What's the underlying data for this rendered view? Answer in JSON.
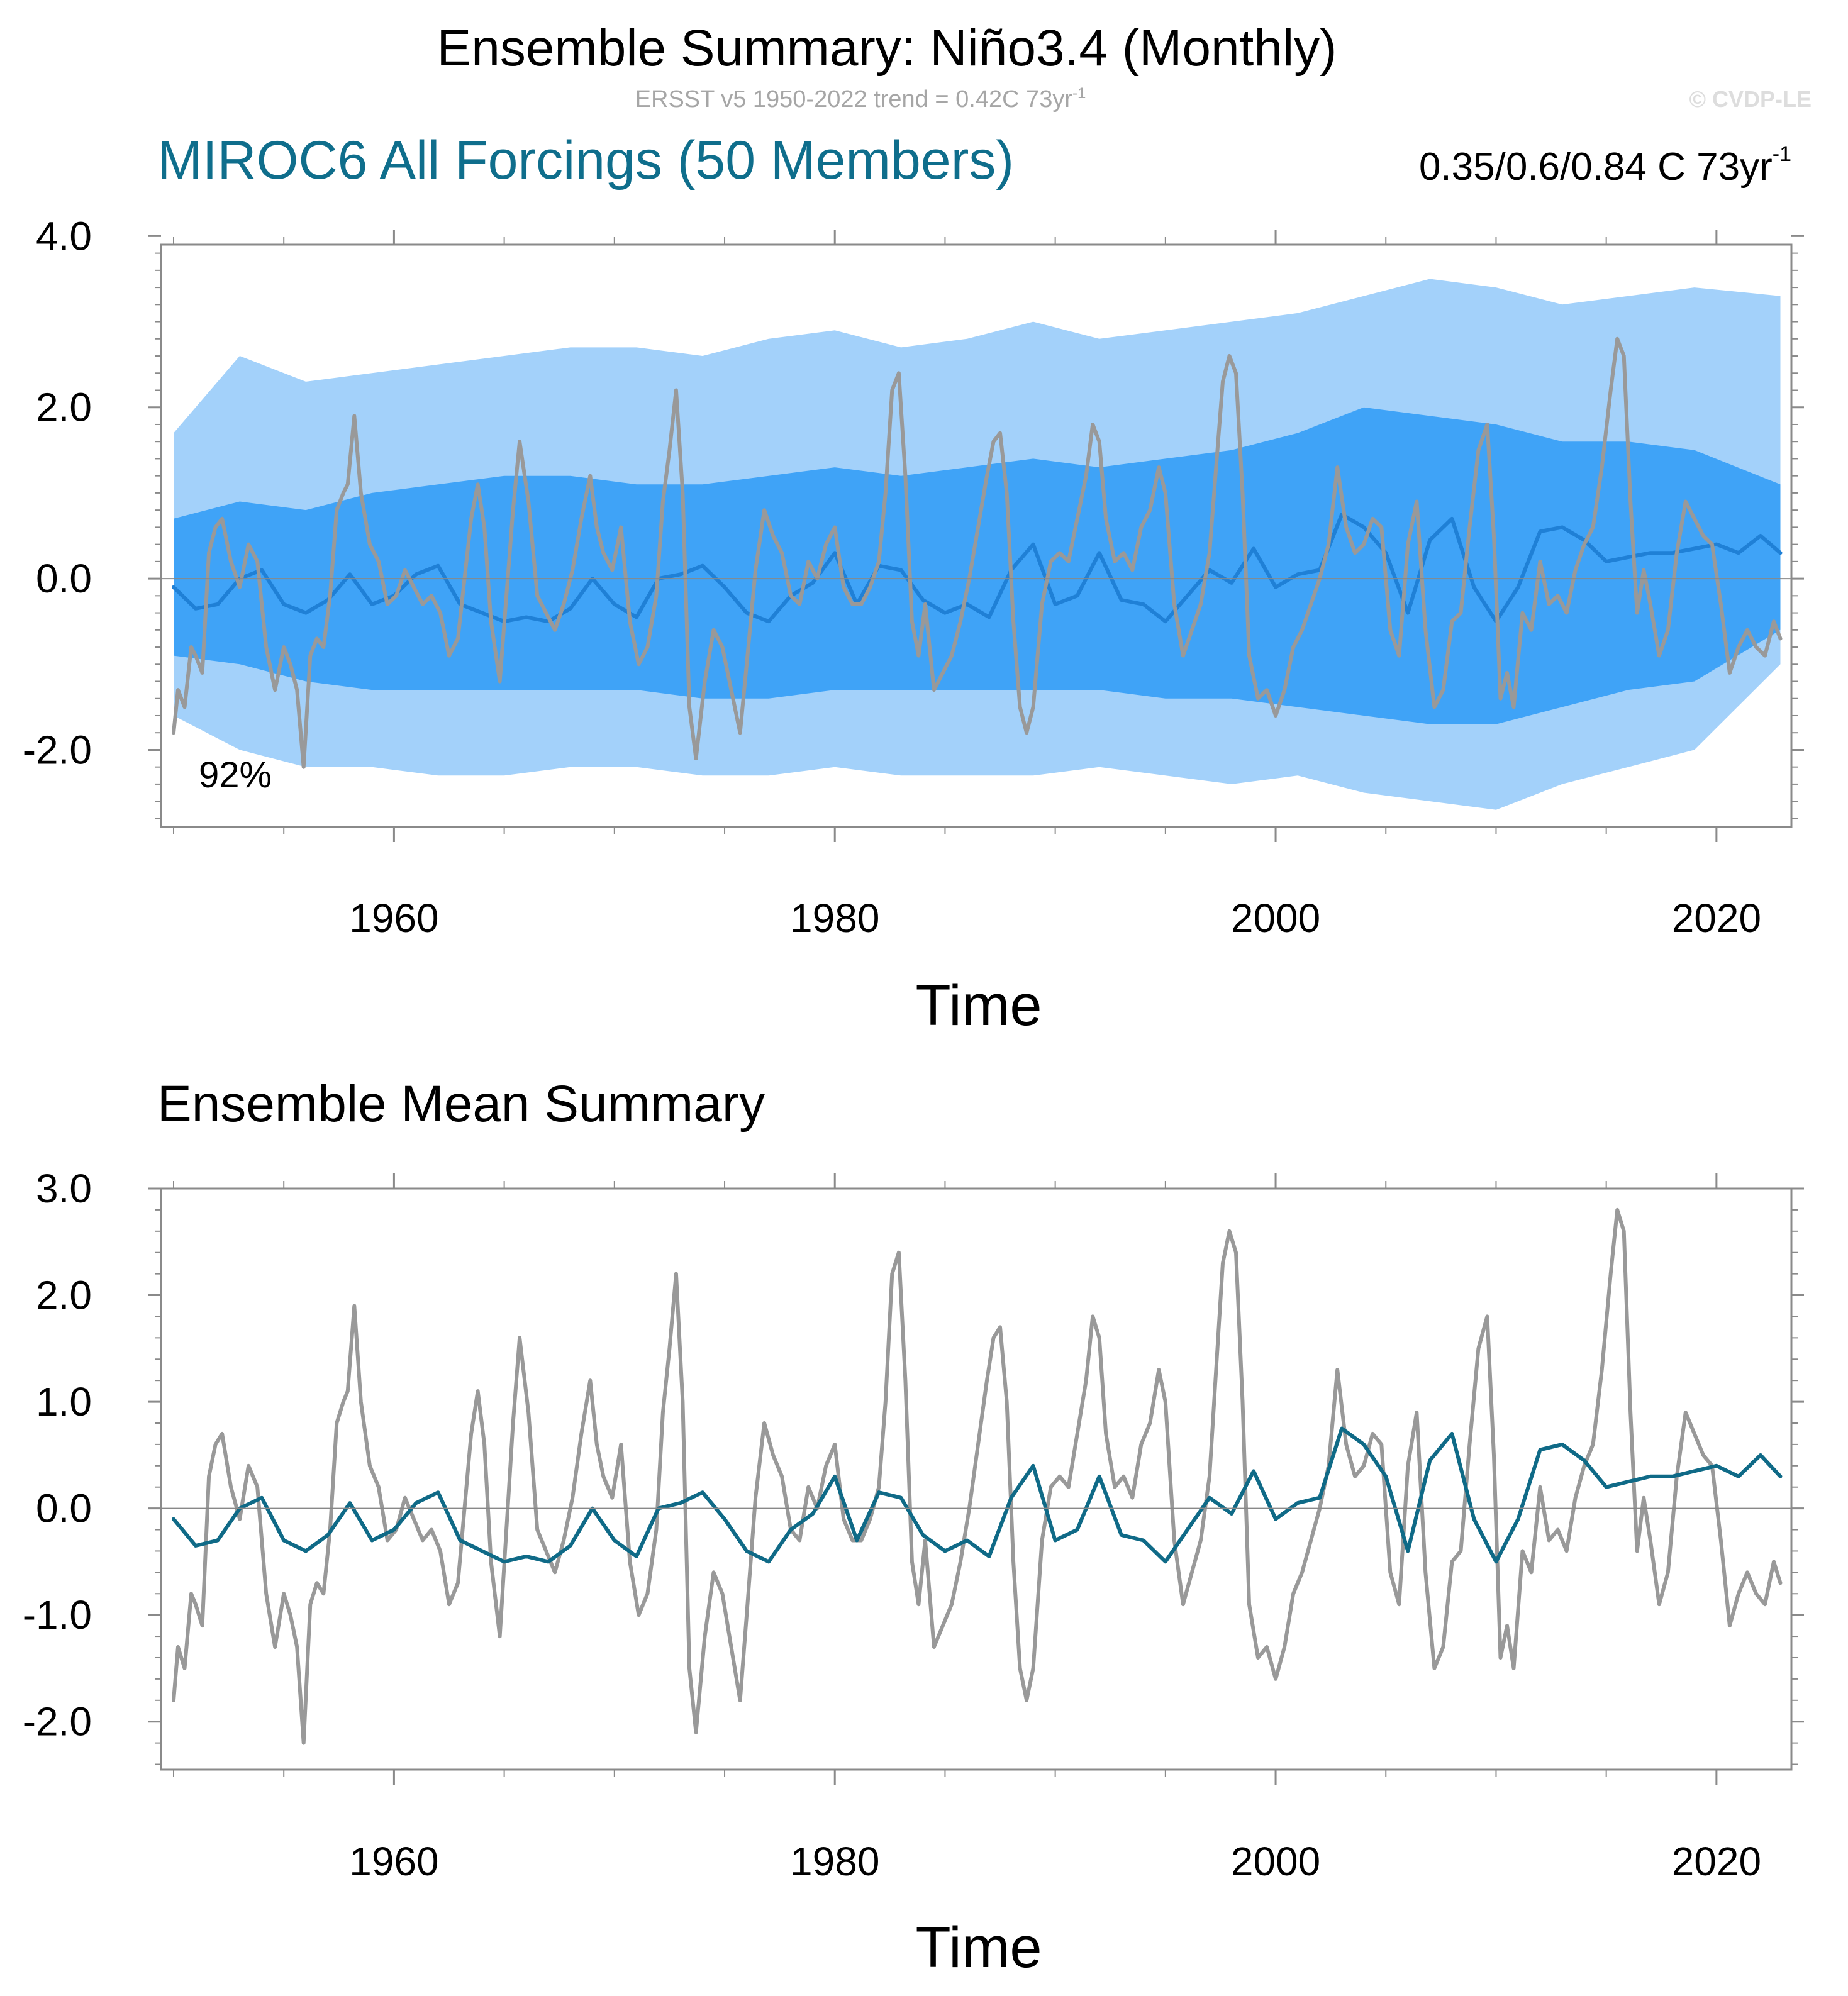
{
  "header": {
    "title": "Ensemble Summary: Niño3.4 (Monthly)",
    "subtitle": "ERSST v5 1950-2022 trend = 0.42C 73yr",
    "subtitle_sup": "-1",
    "copyright": "© CVDP-LE"
  },
  "top_panel": {
    "model_label": "MIROC6 All Forcings (50 Members)",
    "trend_range": "0.35/0.6/0.84 C 73yr",
    "trend_range_sup": "-1",
    "percent_label": "92%",
    "xlabel": "Time"
  },
  "bottom_panel": {
    "title": "Ensemble Mean Summary",
    "xlabel": "Time"
  },
  "colors": {
    "band_outer": "#a3d1fa",
    "band_inner": "#3fa3f7",
    "ens_mean_top": "#1f80d6",
    "ens_mean_bottom": "#0f6a87",
    "observed": "#999999"
  },
  "chart_data": [
    {
      "type": "area",
      "panel": "top",
      "x_range": [
        1950.0,
        2023.0
      ],
      "ylim": [
        -2.9,
        4.0
      ],
      "yticks": [
        "4.0",
        "2.0",
        "0.0",
        "-2.0"
      ],
      "ytick_values": [
        4.0,
        2.0,
        0.0,
        -2.0
      ],
      "xticks": [
        "1960",
        "1980",
        "2000",
        "2020"
      ],
      "xtick_values": [
        1960,
        1980,
        2000,
        2020
      ],
      "series": [
        {
          "name": "Ensemble spread (min-max)",
          "style": "band_outer",
          "x": [
            1950,
            1953,
            1956,
            1959,
            1962,
            1965,
            1968,
            1971,
            1974,
            1977,
            1980,
            1983,
            1986,
            1989,
            1992,
            1995,
            1998,
            2001,
            2004,
            2007,
            2010,
            2013,
            2016,
            2019,
            2022.9
          ],
          "upper": [
            1.7,
            2.6,
            2.3,
            2.4,
            2.5,
            2.6,
            2.7,
            2.7,
            2.6,
            2.8,
            2.9,
            2.7,
            2.8,
            3.0,
            2.8,
            2.9,
            3.0,
            3.1,
            3.3,
            3.5,
            3.4,
            3.2,
            3.3,
            3.4,
            3.3
          ],
          "lower": [
            -1.6,
            -2.0,
            -2.2,
            -2.2,
            -2.3,
            -2.3,
            -2.2,
            -2.2,
            -2.3,
            -2.3,
            -2.2,
            -2.3,
            -2.3,
            -2.3,
            -2.2,
            -2.3,
            -2.4,
            -2.3,
            -2.5,
            -2.6,
            -2.7,
            -2.4,
            -2.2,
            -2.0,
            -1.0
          ]
        },
        {
          "name": "Ensemble spread (10th-90th pct)",
          "style": "band_inner",
          "x": [
            1950,
            1953,
            1956,
            1959,
            1962,
            1965,
            1968,
            1971,
            1974,
            1977,
            1980,
            1983,
            1986,
            1989,
            1992,
            1995,
            1998,
            2001,
            2004,
            2007,
            2010,
            2013,
            2016,
            2019,
            2022.9
          ],
          "upper": [
            0.7,
            0.9,
            0.8,
            1.0,
            1.1,
            1.2,
            1.2,
            1.1,
            1.1,
            1.2,
            1.3,
            1.2,
            1.3,
            1.4,
            1.3,
            1.4,
            1.5,
            1.7,
            2.0,
            1.9,
            1.8,
            1.6,
            1.6,
            1.5,
            1.1
          ],
          "lower": [
            -0.9,
            -1.0,
            -1.2,
            -1.3,
            -1.3,
            -1.3,
            -1.3,
            -1.3,
            -1.4,
            -1.4,
            -1.3,
            -1.3,
            -1.3,
            -1.3,
            -1.3,
            -1.4,
            -1.4,
            -1.5,
            -1.6,
            -1.7,
            -1.7,
            -1.5,
            -1.3,
            -1.2,
            -0.6
          ]
        },
        {
          "name": "Ensemble mean",
          "style": "ens_mean",
          "ref": "ensemble_mean"
        },
        {
          "name": "ERSST v5 observed",
          "style": "observed",
          "ref": "observed"
        }
      ]
    },
    {
      "type": "line",
      "panel": "bottom",
      "x_range": [
        1950.0,
        2023.0
      ],
      "ylim": [
        -2.45,
        3.0
      ],
      "yticks": [
        "3.0",
        "2.0",
        "1.0",
        "0.0",
        "-1.0",
        "-2.0"
      ],
      "ytick_values": [
        3.0,
        2.0,
        1.0,
        0.0,
        -1.0,
        -2.0
      ],
      "xticks": [
        "1960",
        "1980",
        "2000",
        "2020"
      ],
      "xtick_values": [
        1960,
        1980,
        2000,
        2020
      ],
      "series": [
        {
          "name": "ERSST v5 observed",
          "style": "observed",
          "ref": "observed"
        },
        {
          "name": "Ensemble mean",
          "style": "ens_mean",
          "ref": "ensemble_mean"
        }
      ]
    }
  ],
  "series_values": {
    "observed": {
      "x": [
        1950.0,
        1950.2,
        1950.5,
        1950.8,
        1951.0,
        1951.3,
        1951.6,
        1951.9,
        1952.2,
        1952.6,
        1953.0,
        1953.4,
        1953.8,
        1954.2,
        1954.6,
        1955.0,
        1955.3,
        1955.6,
        1955.9,
        1956.2,
        1956.5,
        1956.8,
        1957.1,
        1957.4,
        1957.7,
        1957.9,
        1958.2,
        1958.5,
        1958.9,
        1959.3,
        1959.7,
        1960.1,
        1960.5,
        1960.9,
        1961.3,
        1961.7,
        1962.1,
        1962.5,
        1962.9,
        1963.2,
        1963.5,
        1963.8,
        1964.1,
        1964.4,
        1964.8,
        1965.1,
        1965.4,
        1965.7,
        1966.1,
        1966.5,
        1966.9,
        1967.3,
        1967.7,
        1968.1,
        1968.5,
        1968.9,
        1969.2,
        1969.5,
        1969.9,
        1970.3,
        1970.7,
        1971.1,
        1971.5,
        1971.9,
        1972.2,
        1972.5,
        1972.8,
        1973.1,
        1973.4,
        1973.7,
        1974.1,
        1974.5,
        1974.9,
        1975.3,
        1975.7,
        1976.0,
        1976.4,
        1976.8,
        1977.2,
        1977.6,
        1978.0,
        1978.4,
        1978.8,
        1979.2,
        1979.6,
        1980.0,
        1980.4,
        1980.8,
        1981.2,
        1981.6,
        1982.0,
        1982.3,
        1982.6,
        1982.9,
        1983.2,
        1983.5,
        1983.8,
        1984.1,
        1984.5,
        1984.9,
        1985.3,
        1985.7,
        1986.1,
        1986.5,
        1986.9,
        1987.2,
        1987.5,
        1987.8,
        1988.1,
        1988.4,
        1988.7,
        1989.0,
        1989.4,
        1989.8,
        1990.2,
        1990.6,
        1991.0,
        1991.4,
        1991.7,
        1992.0,
        1992.3,
        1992.7,
        1993.1,
        1993.5,
        1993.9,
        1994.3,
        1994.7,
        1995.0,
        1995.4,
        1995.8,
        1996.2,
        1996.6,
        1997.0,
        1997.3,
        1997.6,
        1997.9,
        1998.2,
        1998.5,
        1998.8,
        1999.2,
        1999.6,
        2000.0,
        2000.4,
        2000.8,
        2001.2,
        2001.6,
        2002.0,
        2002.4,
        2002.8,
        2003.2,
        2003.6,
        2004.0,
        2004.4,
        2004.8,
        2005.2,
        2005.6,
        2006.0,
        2006.4,
        2006.8,
        2007.2,
        2007.6,
        2008.0,
        2008.4,
        2008.8,
        2009.2,
        2009.6,
        2009.9,
        2010.2,
        2010.5,
        2010.8,
        2011.2,
        2011.6,
        2012.0,
        2012.4,
        2012.8,
        2013.2,
        2013.6,
        2014.0,
        2014.4,
        2014.8,
        2015.2,
        2015.5,
        2015.8,
        2016.1,
        2016.4,
        2016.7,
        2017.0,
        2017.4,
        2017.8,
        2018.2,
        2018.6,
        2019.0,
        2019.4,
        2019.8,
        2020.2,
        2020.6,
        2021.0,
        2021.4,
        2021.8,
        2022.2,
        2022.6,
        2022.9
      ],
      "y": [
        -1.8,
        -1.3,
        -1.5,
        -0.8,
        -0.9,
        -1.1,
        0.3,
        0.6,
        0.7,
        0.2,
        -0.1,
        0.4,
        0.2,
        -0.8,
        -1.3,
        -0.8,
        -1.0,
        -1.3,
        -2.2,
        -0.9,
        -0.7,
        -0.8,
        -0.2,
        0.8,
        1.0,
        1.1,
        1.9,
        1.0,
        0.4,
        0.2,
        -0.3,
        -0.2,
        0.1,
        -0.1,
        -0.3,
        -0.2,
        -0.4,
        -0.9,
        -0.7,
        0.0,
        0.7,
        1.1,
        0.6,
        -0.5,
        -1.2,
        -0.2,
        0.8,
        1.6,
        0.9,
        -0.2,
        -0.4,
        -0.6,
        -0.3,
        0.1,
        0.7,
        1.2,
        0.6,
        0.3,
        0.1,
        0.6,
        -0.5,
        -1.0,
        -0.8,
        -0.2,
        0.9,
        1.5,
        2.2,
        1.0,
        -1.5,
        -2.1,
        -1.2,
        -0.6,
        -0.8,
        -1.3,
        -1.8,
        -1.0,
        0.1,
        0.8,
        0.5,
        0.3,
        -0.2,
        -0.3,
        0.2,
        0.0,
        0.4,
        0.6,
        -0.1,
        -0.3,
        -0.3,
        -0.1,
        0.2,
        1.0,
        2.2,
        2.4,
        1.2,
        -0.5,
        -0.9,
        -0.3,
        -1.3,
        -1.1,
        -0.9,
        -0.5,
        0.0,
        0.6,
        1.2,
        1.6,
        1.7,
        1.0,
        -0.5,
        -1.5,
        -1.8,
        -1.5,
        -0.3,
        0.2,
        0.3,
        0.2,
        0.7,
        1.2,
        1.8,
        1.6,
        0.7,
        0.2,
        0.3,
        0.1,
        0.6,
        0.8,
        1.3,
        1.0,
        -0.3,
        -0.9,
        -0.6,
        -0.3,
        0.3,
        1.3,
        2.3,
        2.6,
        2.4,
        1.0,
        -0.9,
        -1.4,
        -1.3,
        -1.6,
        -1.3,
        -0.8,
        -0.6,
        -0.3,
        0.0,
        0.4,
        1.3,
        0.6,
        0.3,
        0.4,
        0.7,
        0.6,
        -0.6,
        -0.9,
        0.4,
        0.9,
        -0.6,
        -1.5,
        -1.3,
        -0.5,
        -0.4,
        0.6,
        1.5,
        1.8,
        0.5,
        -1.4,
        -1.1,
        -1.5,
        -0.4,
        -0.6,
        0.2,
        -0.3,
        -0.2,
        -0.4,
        0.1,
        0.4,
        0.6,
        1.3,
        2.2,
        2.8,
        2.6,
        0.9,
        -0.4,
        0.1,
        -0.3,
        -0.9,
        -0.6,
        0.3,
        0.9,
        0.7,
        0.5,
        0.4,
        -0.3,
        -1.1,
        -0.8,
        -0.6,
        -0.8,
        -0.9,
        -0.5,
        -0.7
      ],
      "note": "observed ERSST v5 Niño3.4 anomaly (°C), approximated from the plot"
    },
    "ensemble_mean": {
      "x": [
        1950.0,
        1951.0,
        1952.0,
        1953.0,
        1954.0,
        1955.0,
        1956.0,
        1957.0,
        1958.0,
        1959.0,
        1960.0,
        1961.0,
        1962.0,
        1963.0,
        1964.0,
        1965.0,
        1966.0,
        1967.0,
        1968.0,
        1969.0,
        1970.0,
        1971.0,
        1972.0,
        1973.0,
        1974.0,
        1975.0,
        1976.0,
        1977.0,
        1978.0,
        1979.0,
        1980.0,
        1981.0,
        1982.0,
        1983.0,
        1984.0,
        1985.0,
        1986.0,
        1987.0,
        1988.0,
        1989.0,
        1990.0,
        1991.0,
        1992.0,
        1993.0,
        1994.0,
        1995.0,
        1996.0,
        1997.0,
        1998.0,
        1999.0,
        2000.0,
        2001.0,
        2002.0,
        2003.0,
        2004.0,
        2005.0,
        2006.0,
        2007.0,
        2008.0,
        2009.0,
        2010.0,
        2011.0,
        2012.0,
        2013.0,
        2014.0,
        2015.0,
        2016.0,
        2017.0,
        2018.0,
        2019.0,
        2020.0,
        2021.0,
        2022.0,
        2022.9
      ],
      "y": [
        -0.1,
        -0.35,
        -0.3,
        0.0,
        0.1,
        -0.3,
        -0.4,
        -0.25,
        0.05,
        -0.3,
        -0.2,
        0.05,
        0.15,
        -0.3,
        -0.4,
        -0.5,
        -0.45,
        -0.5,
        -0.35,
        0.0,
        -0.3,
        -0.45,
        0.0,
        0.05,
        0.15,
        -0.1,
        -0.4,
        -0.5,
        -0.2,
        -0.05,
        0.3,
        -0.3,
        0.15,
        0.1,
        -0.25,
        -0.4,
        -0.3,
        -0.45,
        0.1,
        0.4,
        -0.3,
        -0.2,
        0.3,
        -0.25,
        -0.3,
        -0.5,
        -0.2,
        0.1,
        -0.05,
        0.35,
        -0.1,
        0.05,
        0.1,
        0.75,
        0.6,
        0.3,
        -0.4,
        0.45,
        0.7,
        -0.1,
        -0.5,
        -0.1,
        0.55,
        0.6,
        0.45,
        0.2,
        0.25,
        0.3,
        0.3,
        0.35,
        0.4,
        0.3,
        0.5,
        0.3
      ],
      "note": "ensemble-mean Niño3.4 anomaly (°C), approximated from the plot"
    }
  }
}
